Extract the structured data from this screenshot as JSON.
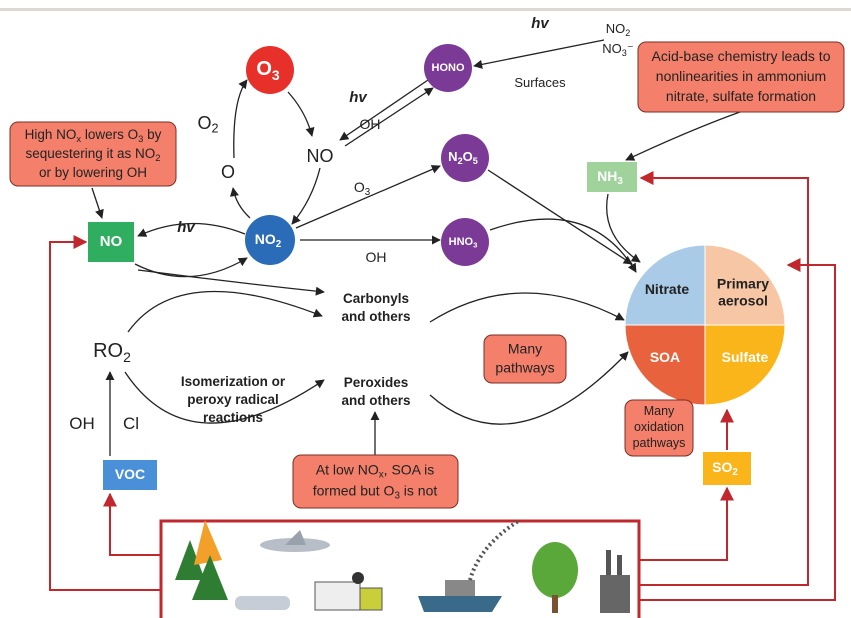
{
  "nodes": {
    "o3": [
      [
        "O",
        "3"
      ]
    ],
    "hono": [
      [
        "HONO"
      ]
    ],
    "n2o5": [
      [
        "N",
        "2",
        "O",
        "5"
      ]
    ],
    "hno3": [
      [
        "HNO",
        "3"
      ]
    ],
    "no2": [
      [
        "NO",
        "2"
      ]
    ],
    "no": [
      [
        "NO"
      ]
    ],
    "nh3": [
      [
        "NH",
        "3"
      ]
    ],
    "voc": [
      [
        "VOC"
      ]
    ],
    "so2": [
      [
        "SO",
        "2"
      ]
    ]
  },
  "aerosol": {
    "nitrate": [
      [
        "Nitrate"
      ]
    ],
    "primary": [
      [
        "Primary"
      ],
      [
        "aerosol"
      ]
    ],
    "soa": [
      [
        "SOA"
      ]
    ],
    "sulfate": [
      [
        "Sulfate"
      ]
    ]
  },
  "notes": {
    "high_nox": [
      [
        "High NO",
        "x",
        " lowers O",
        "3",
        " by"
      ],
      [
        "sequestering it  as NO",
        "2"
      ],
      [
        "or by lowering OH"
      ]
    ],
    "acid_base": [
      [
        "Acid-base chemistry leads to"
      ],
      [
        "nonlinearities in ammonium"
      ],
      [
        "nitrate, sulfate formation"
      ]
    ],
    "many_pathways": [
      [
        "Many"
      ],
      [
        "pathways"
      ]
    ],
    "low_nox": [
      [
        "At low NO",
        "x",
        ", SOA is"
      ],
      [
        "formed but O",
        "3",
        " is not"
      ]
    ],
    "oxidation": [
      [
        "Many"
      ],
      [
        "oxidation"
      ],
      [
        "pathways"
      ]
    ]
  },
  "labels": {
    "o2": [
      [
        "O",
        "2"
      ]
    ],
    "o": [
      [
        "O"
      ]
    ],
    "no_mid": [
      [
        "NO"
      ]
    ],
    "hv_top": [
      [
        "hv"
      ]
    ],
    "oh_hono": [
      [
        "OH"
      ]
    ],
    "hv_right": [
      [
        "hv"
      ]
    ],
    "no2_src": [
      [
        "NO",
        "2"
      ]
    ],
    "no3_src": [
      [
        "NO",
        "3",
        "⁻"
      ]
    ],
    "surfaces": [
      [
        "Surfaces"
      ]
    ],
    "o3_arrow": [
      [
        "O",
        "3"
      ]
    ],
    "oh_hno3": [
      [
        "OH"
      ]
    ],
    "hv_left": [
      [
        "hv"
      ]
    ],
    "carbonyls": [
      [
        "Carbonyls"
      ],
      [
        "and others"
      ]
    ],
    "ro2": [
      [
        "RO",
        "2"
      ]
    ],
    "isomerization": [
      [
        "Isomerization or"
      ],
      [
        "peroxy radical"
      ],
      [
        "reactions"
      ]
    ],
    "peroxides": [
      [
        "Peroxides"
      ],
      [
        "and others"
      ]
    ],
    "oh_voc": [
      [
        "OH"
      ]
    ],
    "cl_voc": [
      [
        "Cl"
      ]
    ]
  }
}
